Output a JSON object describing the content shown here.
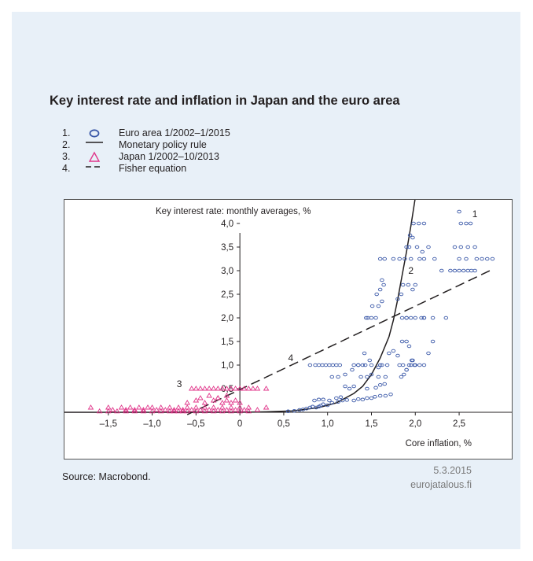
{
  "title": "Key interest rate and inflation in Japan and the euro area",
  "legend": [
    {
      "num": "1.",
      "label": "Euro area 1/2002–1/2015",
      "marker": "circle"
    },
    {
      "num": "2.",
      "label": "Monetary policy rule",
      "marker": "solid-line"
    },
    {
      "num": "3.",
      "label": "Japan 1/2002–10/2013",
      "marker": "triangle"
    },
    {
      "num": "4.",
      "label": "Fisher equation",
      "marker": "dashed-line"
    }
  ],
  "colors": {
    "background": "#e8f0f8",
    "euro_area": "#3a58a8",
    "japan": "#e0368a",
    "line": "#231f20"
  },
  "chart_data": {
    "type": "scatter",
    "ylabel": "Key interest rate: monthly averages, %",
    "xlabel": "Core inflation, %",
    "xlim": [
      -2.0,
      3.1
    ],
    "ylim": [
      0.0,
      4.5
    ],
    "x_ticks": [
      -1.5,
      -1.0,
      -0.5,
      0,
      0.5,
      1.0,
      1.5,
      2.0,
      2.5
    ],
    "x_tick_labels": [
      "–1,5",
      "–1,0",
      "–0,5",
      "0",
      "0,5",
      "1,0",
      "1,5",
      "2,0",
      "2,5"
    ],
    "y_ticks": [
      0.5,
      1.0,
      1.5,
      2.0,
      2.5,
      3.0,
      3.5,
      4.0
    ],
    "y_tick_labels": [
      "0,5",
      "1,0",
      "1,5",
      "2,0",
      "2,5",
      "3,0",
      "3,5",
      "4,0"
    ],
    "grid": false,
    "series": [
      {
        "name": "Euro area 1/2002–1/2015",
        "marker": "circle",
        "x": [
          0.55,
          0.62,
          0.68,
          0.72,
          0.76,
          0.8,
          0.83,
          0.87,
          0.9,
          0.92,
          0.95,
          1.0,
          1.05,
          1.12,
          1.17,
          1.22,
          1.3,
          1.35,
          1.4,
          1.45,
          1.5,
          1.54,
          1.6,
          1.66,
          1.72,
          0.85,
          0.9,
          0.95,
          1.02,
          1.1,
          1.15,
          1.2,
          1.25,
          1.3,
          1.45,
          1.55,
          1.6,
          1.65,
          0.8,
          0.86,
          0.9,
          0.94,
          0.98,
          1.02,
          1.06,
          1.1,
          1.14,
          1.3,
          1.35,
          1.4,
          1.43,
          1.5,
          1.6,
          1.68,
          1.05,
          1.12,
          1.2,
          1.28,
          1.35,
          1.42,
          1.48,
          1.58,
          1.66,
          1.84,
          1.87,
          1.9,
          1.93,
          1.96,
          1.38,
          1.45,
          1.5,
          1.58,
          1.62,
          1.7,
          1.75,
          1.8,
          1.82,
          1.86,
          1.9,
          1.95,
          1.99,
          1.85,
          1.9,
          1.93,
          1.97,
          2.0,
          2.05,
          2.1,
          2.15,
          2.2,
          1.44,
          1.46,
          1.5,
          1.55,
          1.85,
          1.9,
          2.0,
          2.1,
          2.2,
          2.35,
          1.51,
          1.58,
          1.62,
          1.9,
          1.95,
          2.07,
          2.1,
          1.56,
          1.6,
          1.8,
          1.84,
          1.97,
          2.3,
          2.4,
          2.45,
          2.5,
          2.55,
          2.6,
          2.64,
          2.68,
          1.62,
          1.64,
          1.86,
          1.92,
          2.0,
          1.9,
          1.93,
          1.97,
          2.02,
          2.08,
          2.15,
          2.45,
          2.52,
          2.6,
          2.68,
          1.94,
          1.98,
          2.04,
          2.1,
          2.52,
          2.58,
          2.63,
          1.6,
          1.65,
          1.75,
          1.82,
          1.88,
          1.95,
          2.05,
          2.1,
          2.22,
          2.5,
          2.58,
          2.7,
          2.76,
          2.82,
          2.88,
          2.5
        ],
        "y": [
          0.02,
          0.03,
          0.05,
          0.06,
          0.08,
          0.1,
          0.12,
          0.1,
          0.12,
          0.14,
          0.17,
          0.15,
          0.2,
          0.22,
          0.25,
          0.26,
          0.25,
          0.28,
          0.27,
          0.3,
          0.3,
          0.33,
          0.35,
          0.35,
          0.38,
          0.25,
          0.27,
          0.27,
          0.25,
          0.3,
          0.32,
          0.55,
          0.5,
          0.55,
          0.5,
          0.52,
          0.58,
          0.6,
          1.0,
          1.0,
          1.0,
          1.0,
          1.0,
          1.0,
          1.0,
          1.0,
          1.0,
          1.0,
          1.0,
          1.0,
          1.0,
          1.0,
          1.0,
          1.0,
          0.75,
          0.75,
          0.8,
          0.9,
          1.0,
          1.25,
          1.1,
          0.75,
          0.75,
          0.75,
          0.8,
          0.9,
          1.0,
          1.1,
          0.75,
          0.75,
          0.8,
          0.95,
          1.0,
          1.25,
          1.3,
          1.2,
          1.0,
          1.0,
          0.9,
          1.0,
          1.0,
          1.5,
          1.5,
          1.4,
          1.1,
          1.0,
          1.0,
          1.0,
          1.25,
          1.5,
          2.0,
          2.0,
          2.0,
          2.0,
          2.0,
          2.0,
          2.0,
          2.0,
          2.0,
          2.0,
          2.25,
          2.25,
          2.35,
          2.0,
          2.0,
          2.0,
          2.0,
          2.5,
          2.6,
          2.4,
          2.5,
          2.6,
          3.0,
          3.0,
          3.0,
          3.0,
          3.0,
          3.0,
          3.0,
          3.0,
          2.8,
          2.7,
          2.7,
          2.7,
          2.7,
          3.5,
          3.5,
          3.7,
          3.5,
          3.4,
          3.5,
          3.5,
          3.5,
          3.5,
          3.5,
          3.75,
          4.0,
          4.0,
          4.0,
          4.0,
          4.0,
          4.0,
          3.25,
          3.25,
          3.25,
          3.25,
          3.25,
          3.25,
          3.25,
          3.25,
          3.25,
          3.25,
          3.25,
          3.25,
          3.25,
          3.25,
          3.25,
          4.25
        ]
      },
      {
        "name": "Japan 1/2002–10/2013",
        "marker": "triangle",
        "x": [
          -1.7,
          -1.5,
          -1.45,
          -1.35,
          -1.3,
          -1.25,
          -1.2,
          -1.15,
          -1.1,
          -1.05,
          -1.0,
          -0.95,
          -0.9,
          -0.85,
          -0.8,
          -0.75,
          -0.7,
          -0.65,
          -0.6,
          -0.55,
          -0.5,
          -0.45,
          -0.4,
          -0.35,
          -0.3,
          -0.25,
          -0.2,
          -0.15,
          -0.1,
          -0.05,
          0.0,
          0.05,
          0.1,
          0.2,
          0.3,
          -1.6,
          -1.5,
          -1.4,
          -1.3,
          -1.2,
          -1.1,
          -1.0,
          -0.9,
          -0.8,
          -0.75,
          -0.7,
          -0.65,
          -0.6,
          -0.5,
          -0.4,
          -0.3,
          -0.2,
          -0.1,
          0.0,
          0.1,
          -0.6,
          -0.5,
          -0.4,
          -0.3,
          -0.25,
          -0.2,
          -0.15,
          -0.1,
          -0.05,
          0.0,
          -0.45,
          -0.35,
          -0.25,
          -0.15,
          -0.55,
          -0.5,
          -0.45,
          -0.4,
          -0.35,
          -0.3,
          -0.25,
          -0.2,
          -0.15,
          -0.1,
          -0.05,
          0.0,
          0.05,
          0.1,
          0.15,
          0.2,
          0.3
        ],
        "y": [
          0.1,
          0.1,
          0.05,
          0.1,
          0.05,
          0.1,
          0.05,
          0.1,
          0.05,
          0.1,
          0.1,
          0.05,
          0.1,
          0.05,
          0.1,
          0.05,
          0.1,
          0.05,
          0.1,
          0.05,
          0.1,
          0.05,
          0.1,
          0.05,
          0.1,
          0.05,
          0.1,
          0.05,
          0.1,
          0.05,
          0.1,
          0.05,
          0.1,
          0.05,
          0.1,
          0.02,
          0.02,
          0.02,
          0.02,
          0.02,
          0.02,
          0.02,
          0.02,
          0.02,
          0.02,
          0.02,
          0.02,
          0.02,
          0.02,
          0.02,
          0.02,
          0.02,
          0.02,
          0.02,
          0.02,
          0.2,
          0.25,
          0.2,
          0.25,
          0.3,
          0.2,
          0.25,
          0.2,
          0.25,
          0.2,
          0.3,
          0.35,
          0.3,
          0.35,
          0.5,
          0.5,
          0.5,
          0.5,
          0.5,
          0.5,
          0.5,
          0.5,
          0.5,
          0.5,
          0.5,
          0.5,
          0.5,
          0.5,
          0.5,
          0.5,
          0.5
        ]
      }
    ],
    "lines": [
      {
        "name": "Monetary policy rule",
        "style": "solid",
        "x": [
          -2.0,
          0.0,
          0.3,
          0.6,
          0.9,
          1.1,
          1.3,
          1.4,
          1.5,
          1.6,
          1.7,
          1.75,
          1.8,
          1.85,
          1.9,
          1.95,
          2.0
        ],
        "y": [
          0.0,
          0.0,
          0.01,
          0.03,
          0.1,
          0.2,
          0.4,
          0.55,
          0.8,
          1.15,
          1.6,
          1.95,
          2.4,
          2.9,
          3.4,
          3.95,
          4.55
        ]
      },
      {
        "name": "Fisher equation",
        "style": "dashed",
        "x": [
          -0.6,
          2.85
        ],
        "y": [
          -0.05,
          3.0
        ]
      }
    ],
    "annotations": [
      {
        "text": "1",
        "x": 2.65,
        "y": 4.2
      },
      {
        "text": "2",
        "x": 1.92,
        "y": 3.0
      },
      {
        "text": "3",
        "x": -0.72,
        "y": 0.6
      },
      {
        "text": "4",
        "x": 0.55,
        "y": 1.15
      }
    ]
  },
  "source": "Source: Macrobond.",
  "date": "5.3.2015",
  "website": "eurojatalous.fi"
}
